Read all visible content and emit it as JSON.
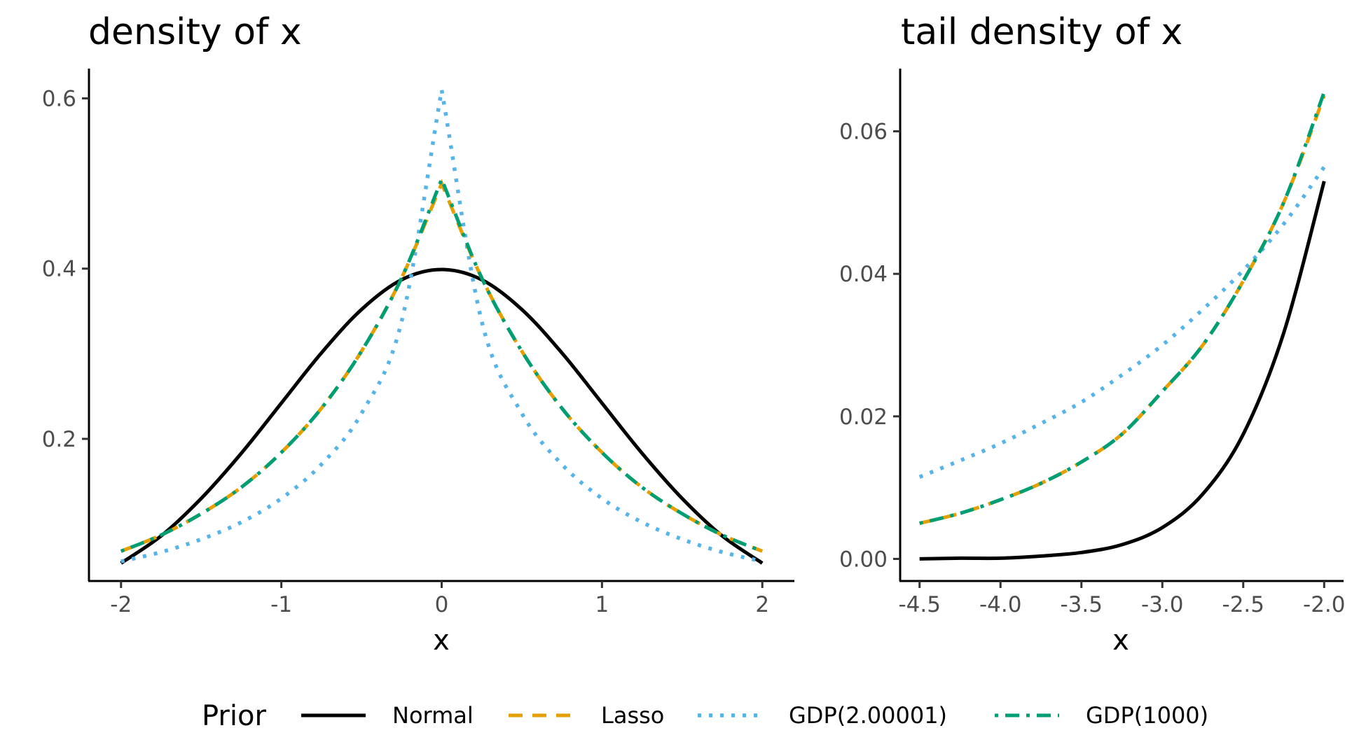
{
  "chart_data": [
    {
      "type": "line",
      "title": "density of x",
      "xlabel": "x",
      "ylabel": "",
      "xlim": [
        -2.2,
        2.2
      ],
      "ylim": [
        0.033,
        0.635
      ],
      "xticks": [
        -2,
        -1,
        0,
        1,
        2
      ],
      "xtick_labels": [
        "-2",
        "-1",
        "0",
        "1",
        "2"
      ],
      "yticks": [
        0.2,
        0.4,
        0.6
      ],
      "ytick_labels": [
        "0.2",
        "0.4",
        "0.6"
      ],
      "grid": false,
      "x": [
        -2.0,
        -1.75,
        -1.5,
        -1.25,
        -1.0,
        -0.75,
        -0.5,
        -0.25,
        0.0,
        0.25,
        0.5,
        0.75,
        1.0,
        1.25,
        1.5,
        1.75,
        2.0
      ],
      "series": [
        {
          "name": "Normal",
          "values": [
            0.054,
            0.086,
            0.13,
            0.183,
            0.242,
            0.301,
            0.352,
            0.387,
            0.399,
            0.387,
            0.352,
            0.301,
            0.242,
            0.183,
            0.13,
            0.086,
            0.054
          ]
        },
        {
          "name": "Lasso",
          "values": [
            0.068,
            0.087,
            0.112,
            0.143,
            0.184,
            0.236,
            0.303,
            0.389,
            0.5,
            0.389,
            0.303,
            0.236,
            0.184,
            0.143,
            0.112,
            0.087,
            0.068
          ]
        },
        {
          "name": "GDP(2.00001)",
          "values": [
            0.056,
            0.067,
            0.082,
            0.102,
            0.13,
            0.17,
            0.23,
            0.338,
            0.61,
            0.338,
            0.23,
            0.17,
            0.13,
            0.102,
            0.082,
            0.067,
            0.056
          ]
        },
        {
          "name": "GDP(1000)",
          "values": [
            0.068,
            0.087,
            0.112,
            0.143,
            0.184,
            0.236,
            0.303,
            0.389,
            0.505,
            0.389,
            0.303,
            0.236,
            0.184,
            0.143,
            0.112,
            0.087,
            0.068
          ]
        }
      ]
    },
    {
      "type": "line",
      "title": "tail density of x",
      "xlabel": "x",
      "ylabel": "",
      "xlim": [
        -4.62,
        -1.88
      ],
      "ylim": [
        -0.0031,
        0.0688
      ],
      "xticks": [
        -4.5,
        -4.0,
        -3.5,
        -3.0,
        -2.5,
        -2.0
      ],
      "xtick_labels": [
        "-4.5",
        "-4.0",
        "-3.5",
        "-3.0",
        "-2.5",
        "-2.0"
      ],
      "yticks": [
        0.0,
        0.02,
        0.04,
        0.06
      ],
      "ytick_labels": [
        "0.00",
        "0.02",
        "0.04",
        "0.06"
      ],
      "grid": false,
      "x": [
        -4.5,
        -4.25,
        -4.0,
        -3.75,
        -3.5,
        -3.25,
        -3.0,
        -2.75,
        -2.5,
        -2.25,
        -2.0
      ],
      "series": [
        {
          "name": "Normal",
          "values": [
            0.0,
            0.0001,
            0.0001,
            0.0004,
            0.0009,
            0.002,
            0.0044,
            0.0091,
            0.0175,
            0.0317,
            0.053
          ]
        },
        {
          "name": "Lasso",
          "values": [
            0.005,
            0.0064,
            0.0083,
            0.0106,
            0.0136,
            0.0175,
            0.0235,
            0.03,
            0.039,
            0.05,
            0.065
          ]
        },
        {
          "name": "GDP(2.00001)",
          "values": [
            0.0115,
            0.0138,
            0.0162,
            0.019,
            0.022,
            0.0258,
            0.03,
            0.035,
            0.0405,
            0.047,
            0.055
          ]
        },
        {
          "name": "GDP(1000)",
          "values": [
            0.005,
            0.0064,
            0.0083,
            0.0106,
            0.0136,
            0.0175,
            0.0235,
            0.03,
            0.039,
            0.05,
            0.0655
          ]
        }
      ]
    }
  ],
  "legend": {
    "title": "Prior",
    "placement": "bottom",
    "items": [
      {
        "label": "Normal",
        "color": "#000000",
        "style": "solid"
      },
      {
        "label": "Lasso",
        "color": "#E69F00",
        "style": "dashed"
      },
      {
        "label": "GDP(2.00001)",
        "color": "#56B4E9",
        "style": "dotted"
      },
      {
        "label": "GDP(1000)",
        "color": "#009E73",
        "style": "dotdash"
      }
    ]
  }
}
